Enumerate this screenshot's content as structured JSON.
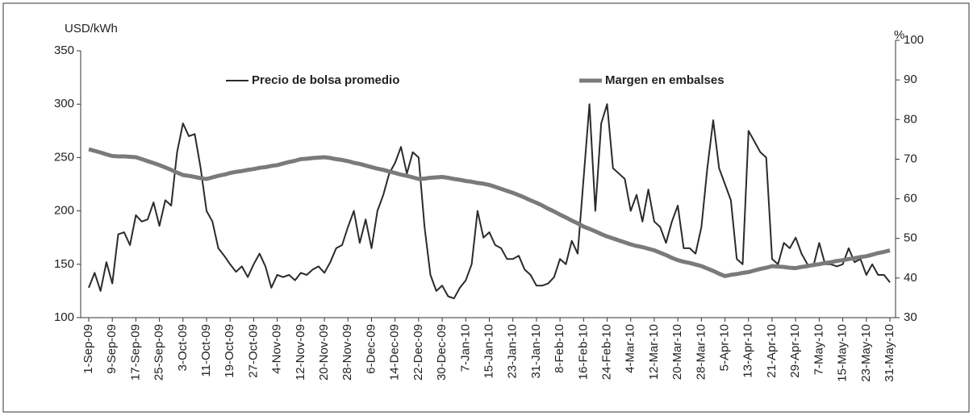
{
  "chart_data": {
    "type": "line",
    "y_label": "USD/kWh",
    "y2_label": "%",
    "categories": [
      "1-Sep-09",
      null,
      null,
      null,
      "9-Sep-09",
      null,
      null,
      null,
      "17-Sep-09",
      null,
      null,
      null,
      "25-Sep-09",
      null,
      null,
      null,
      "3-Oct-09",
      null,
      null,
      null,
      "11-Oct-09",
      null,
      null,
      null,
      "19-Oct-09",
      null,
      null,
      null,
      "27-Oct-09",
      null,
      null,
      null,
      "4-Nov-09",
      null,
      null,
      null,
      "12-Nov-09",
      null,
      null,
      null,
      "20-Nov-09",
      null,
      null,
      null,
      "28-Nov-09",
      null,
      null,
      null,
      "6-Dec-09",
      null,
      null,
      null,
      "14-Dec-09",
      null,
      null,
      null,
      "22-Dec-09",
      null,
      null,
      null,
      "30-Dec-09",
      null,
      null,
      null,
      "7-Jan-10",
      null,
      null,
      null,
      "15-Jan-10",
      null,
      null,
      null,
      "23-Jan-10",
      null,
      null,
      null,
      "31-Jan-10",
      null,
      null,
      null,
      "8-Feb-10",
      null,
      null,
      null,
      "16-Feb-10",
      null,
      null,
      null,
      "24-Feb-10",
      null,
      null,
      null,
      "4-Mar-10",
      null,
      null,
      null,
      "12-Mar-10",
      null,
      null,
      null,
      "20-Mar-10",
      null,
      null,
      null,
      "28-Mar-10",
      null,
      null,
      null,
      "5-Apr-10",
      null,
      null,
      null,
      "13-Apr-10",
      null,
      null,
      null,
      "21-Apr-10",
      null,
      null,
      null,
      "29-Apr-10",
      null,
      null,
      null,
      "7-May-10",
      null,
      null,
      null,
      "15-May-10",
      null,
      null,
      null,
      "23-May-10",
      null,
      null,
      null,
      "31-May-10"
    ],
    "series": [
      {
        "name": "Precio de bolsa promedio",
        "color": "#2b2b2b",
        "axis": "y",
        "values": [
          128,
          142,
          125,
          152,
          132,
          178,
          180,
          168,
          196,
          190,
          192,
          208,
          186,
          210,
          205,
          255,
          282,
          270,
          272,
          240,
          200,
          190,
          165,
          158,
          150,
          143,
          148,
          138,
          150,
          160,
          148,
          128,
          140,
          138,
          140,
          135,
          142,
          140,
          145,
          148,
          142,
          152,
          165,
          168,
          185,
          200,
          170,
          192,
          165,
          200,
          215,
          235,
          245,
          260,
          235,
          255,
          250,
          185,
          140,
          125,
          130,
          120,
          118,
          128,
          135,
          150,
          200,
          175,
          180,
          168,
          165,
          155,
          155,
          158,
          145,
          140,
          130,
          130,
          132,
          138,
          155,
          150,
          172,
          160,
          230,
          300,
          200,
          282,
          300,
          240,
          235,
          230,
          200,
          215,
          190,
          220,
          190,
          185,
          170,
          190,
          205,
          165,
          165,
          160,
          185,
          240,
          285,
          240,
          225,
          210,
          155,
          150,
          275,
          265,
          255,
          250,
          155,
          150,
          170,
          165,
          175,
          160,
          150,
          148,
          170,
          150,
          150,
          148,
          150,
          165,
          152,
          155,
          140,
          150,
          140,
          140,
          133
        ]
      },
      {
        "name": "Margen en embalses",
        "color": "#7a7a7a",
        "axis": "y2",
        "values": [
          72.5,
          72.1,
          71.7,
          71.2,
          70.8,
          70.7,
          70.7,
          70.6,
          70.5,
          70.0,
          69.5,
          69.0,
          68.5,
          67.9,
          67.3,
          66.6,
          66,
          65.8,
          65.5,
          65.2,
          65,
          65.4,
          65.8,
          66.1,
          66.5,
          66.8,
          67.0,
          67.3,
          67.5,
          67.8,
          68.0,
          68.3,
          68.5,
          68.9,
          69.3,
          69.6,
          70,
          70.1,
          70.3,
          70.4,
          70.5,
          70.3,
          70.0,
          69.8,
          69.5,
          69.1,
          68.8,
          68.4,
          68,
          67.6,
          67.3,
          66.9,
          66.5,
          66.1,
          65.8,
          65.4,
          65,
          65.1,
          65.3,
          65.4,
          65.5,
          65.3,
          65.0,
          64.8,
          64.5,
          64.3,
          64.0,
          63.8,
          63.5,
          63.0,
          62.5,
          62.0,
          61.5,
          60.9,
          60.3,
          59.6,
          59,
          58.3,
          57.5,
          56.8,
          56,
          55.3,
          54.5,
          53.8,
          53,
          52.4,
          51.8,
          51.1,
          50.5,
          50.0,
          49.5,
          49.0,
          48.5,
          48.1,
          47.8,
          47.4,
          47,
          46.4,
          45.8,
          45.1,
          44.5,
          44.1,
          43.8,
          43.4,
          43,
          42.4,
          41.8,
          41.1,
          40.5,
          40.8,
          41.0,
          41.3,
          41.5,
          41.9,
          42.3,
          42.6,
          43,
          42.9,
          42.8,
          42.6,
          42.5,
          42.8,
          43.0,
          43.3,
          43.5,
          43.8,
          44.0,
          44.3,
          44.5,
          44.8,
          45.0,
          45.3,
          45.5,
          45.9,
          46.3,
          46.6,
          47
        ]
      }
    ],
    "ylim": [
      100,
      350
    ],
    "yticks": [
      100,
      150,
      200,
      250,
      300,
      350
    ],
    "y2lim": [
      30,
      100
    ],
    "y2ticks": [
      30,
      40,
      50,
      60,
      70,
      80,
      90,
      100
    ]
  }
}
